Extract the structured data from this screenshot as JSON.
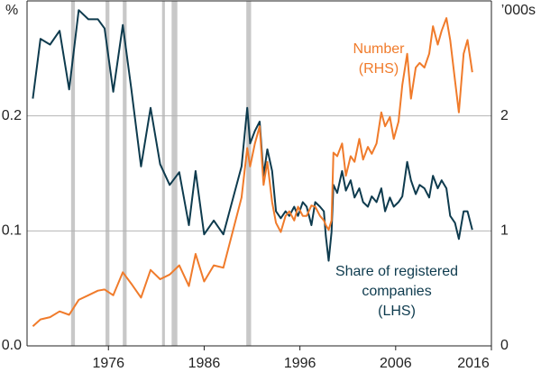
{
  "chart_data": {
    "type": "line",
    "y_unit": "%",
    "y2_unit": "’000s",
    "x": [
      1968.1,
      1968.9,
      1969.9,
      1970.9,
      1971.9,
      1972.9,
      1973.9,
      1974.9,
      1975.6,
      1976.5,
      1977.5,
      1978.4,
      1979.4,
      1980.4,
      1981.4,
      1982.4,
      1983.4,
      1984.4,
      1985.1,
      1986.0,
      1987.0,
      1988.0,
      1989.9,
      1990.5,
      1990.8,
      1991.3,
      1991.8,
      1992.2,
      1992.6,
      1993.1,
      1993.5,
      1994.0,
      1994.5,
      1994.9,
      1995.4,
      1995.8,
      1996.3,
      1996.7,
      1997.2,
      1997.6,
      1998.1,
      1998.5,
      1998.7,
      1999.0,
      1999.3,
      1999.5,
      1999.9,
      2000.4,
      2000.8,
      2001.3,
      2001.7,
      2002.2,
      2002.6,
      2003.1,
      2003.5,
      2004.0,
      2004.5,
      2004.9,
      2005.4,
      2005.8,
      2006.3,
      2006.7,
      2007.2,
      2007.6,
      2008.1,
      2008.5,
      2009.0,
      2009.5,
      2009.9,
      2010.4,
      2010.8,
      2011.3,
      2011.7,
      2012.2,
      2012.6,
      2013.1,
      2013.5,
      2014.0
    ],
    "series": [
      {
        "label": [
          "Share of registered",
          "companies",
          "(LHS)"
        ],
        "color": "#0e3b4e",
        "axis": "y",
        "values": [
          0.215,
          0.267,
          0.262,
          0.274,
          0.223,
          0.292,
          0.284,
          0.284,
          0.276,
          0.221,
          0.279,
          0.223,
          0.156,
          0.207,
          0.158,
          0.14,
          0.151,
          0.105,
          0.152,
          0.097,
          0.109,
          0.097,
          0.156,
          0.207,
          0.176,
          0.187,
          0.195,
          0.148,
          0.171,
          0.152,
          0.117,
          0.111,
          0.117,
          0.113,
          0.121,
          0.113,
          0.125,
          0.121,
          0.105,
          0.125,
          0.121,
          0.117,
          0.096,
          0.074,
          0.099,
          0.14,
          0.133,
          0.152,
          0.135,
          0.144,
          0.129,
          0.137,
          0.125,
          0.121,
          0.13,
          0.125,
          0.137,
          0.117,
          0.129,
          0.121,
          0.125,
          0.13,
          0.16,
          0.144,
          0.132,
          0.14,
          0.137,
          0.129,
          0.148,
          0.137,
          0.144,
          0.137,
          0.113,
          0.107,
          0.093,
          0.117,
          0.117,
          0.101
        ]
      },
      {
        "label": [
          "Number",
          "(RHS)"
        ],
        "color": "#f07b2b",
        "axis": "y2",
        "values": [
          0.17,
          0.23,
          0.25,
          0.3,
          0.27,
          0.4,
          0.44,
          0.48,
          0.49,
          0.44,
          0.64,
          0.54,
          0.42,
          0.66,
          0.58,
          0.62,
          0.7,
          0.52,
          0.8,
          0.56,
          0.7,
          0.68,
          1.29,
          1.72,
          1.56,
          1.76,
          1.91,
          1.4,
          1.6,
          1.25,
          1.07,
          0.99,
          1.13,
          1.17,
          1.09,
          1.21,
          1.13,
          1.13,
          1.22,
          1.21,
          1.13,
          1.09,
          1.05,
          1.01,
          1.09,
          1.68,
          1.65,
          1.76,
          1.48,
          1.65,
          1.6,
          1.8,
          1.62,
          1.73,
          1.67,
          1.76,
          2.03,
          1.91,
          1.99,
          1.8,
          1.95,
          2.27,
          2.54,
          2.15,
          2.42,
          2.46,
          2.42,
          2.54,
          2.78,
          2.62,
          2.74,
          2.85,
          2.66,
          2.31,
          2.03,
          2.54,
          2.66,
          2.38
        ]
      }
    ],
    "shading": [
      [
        1972.1,
        1972.5
      ],
      [
        1975.7,
        1976.1
      ],
      [
        1977.5,
        1977.9
      ],
      [
        1981.6,
        1981.9
      ],
      [
        1982.6,
        1983.2
      ],
      [
        1990.4,
        1990.9
      ]
    ],
    "shading_color": "#c8c8c8",
    "xlim": [
      1967.5,
      2016
    ],
    "xticks": [
      1976,
      1986,
      1996,
      2006,
      2016
    ],
    "ylim": [
      0,
      0.3
    ],
    "yticks": [
      {
        "value": 0,
        "label": "0.0"
      },
      0.1,
      0.2
    ],
    "y2lim": [
      0,
      3
    ],
    "y2ticks": [
      0,
      1,
      2
    ],
    "grid": true
  }
}
